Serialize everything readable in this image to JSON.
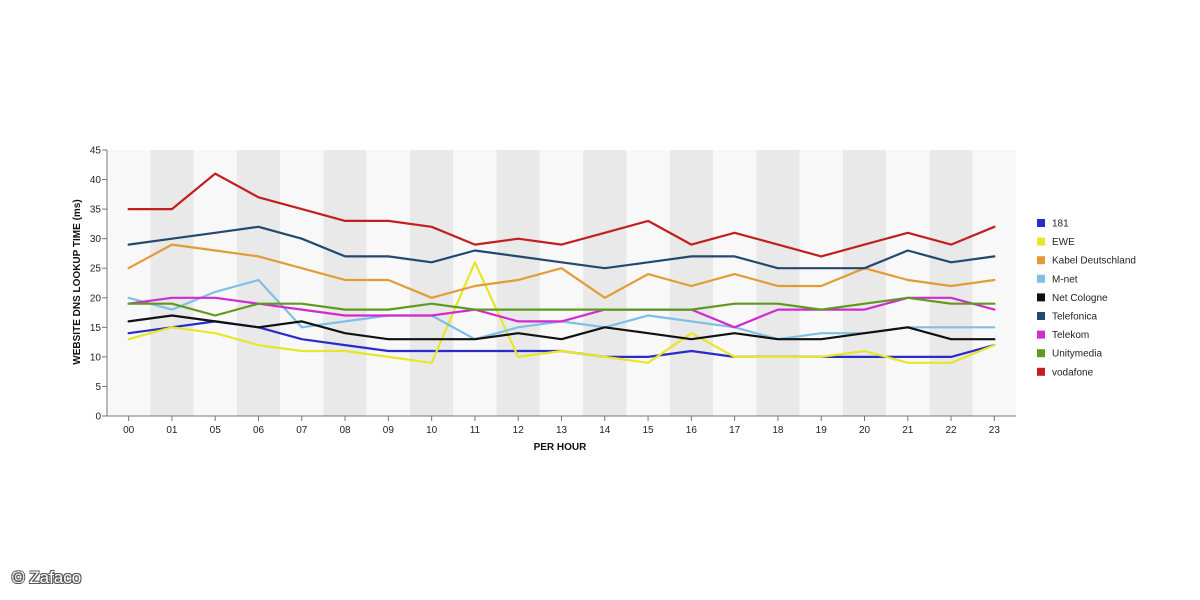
{
  "credit": "© Zafaco",
  "chart_data": {
    "type": "line",
    "title": "",
    "xlabel": "PER HOUR",
    "ylabel": "WEBSITE DNS LOOKUP TIME (ms)",
    "ylim": [
      0,
      45
    ],
    "yticks": [
      0,
      5,
      10,
      15,
      20,
      25,
      30,
      35,
      40,
      45
    ],
    "grid": "alternating vertical bands",
    "legend_position": "right",
    "categories": [
      "00",
      "01",
      "05",
      "06",
      "07",
      "08",
      "09",
      "10",
      "11",
      "12",
      "13",
      "14",
      "15",
      "16",
      "17",
      "18",
      "19",
      "20",
      "21",
      "22",
      "23"
    ],
    "series": [
      {
        "name": "181",
        "color": "#2b2bc8",
        "values": [
          14,
          15,
          16,
          15,
          13,
          12,
          11,
          11,
          11,
          11,
          11,
          10,
          10,
          11,
          10,
          10,
          10,
          10,
          10,
          10,
          12
        ]
      },
      {
        "name": "EWE",
        "color": "#e6e62a",
        "values": [
          13,
          15,
          14,
          12,
          11,
          11,
          10,
          9,
          26,
          10,
          11,
          10,
          9,
          14,
          10,
          10,
          10,
          11,
          9,
          9,
          12
        ]
      },
      {
        "name": "Kabel Deutschland",
        "color": "#e39b38",
        "values": [
          25,
          29,
          28,
          27,
          25,
          23,
          23,
          20,
          22,
          23,
          25,
          20,
          24,
          22,
          24,
          22,
          22,
          25,
          23,
          22,
          23
        ]
      },
      {
        "name": "M-net",
        "color": "#7fbfe6",
        "values": [
          20,
          18,
          21,
          23,
          15,
          16,
          17,
          17,
          13,
          15,
          16,
          15,
          17,
          16,
          15,
          13,
          14,
          14,
          15,
          15,
          15
        ]
      },
      {
        "name": "Net Cologne",
        "color": "#111111",
        "values": [
          16,
          17,
          16,
          15,
          16,
          14,
          13,
          13,
          13,
          14,
          13,
          15,
          14,
          13,
          14,
          13,
          13,
          14,
          15,
          13,
          13
        ]
      },
      {
        "name": "Telefonica",
        "color": "#24496e",
        "values": [
          29,
          30,
          31,
          32,
          30,
          27,
          27,
          26,
          28,
          27,
          26,
          25,
          26,
          27,
          27,
          25,
          25,
          25,
          28,
          26,
          27
        ]
      },
      {
        "name": "Telekom",
        "color": "#d12ad1",
        "values": [
          19,
          20,
          20,
          19,
          18,
          17,
          17,
          17,
          18,
          16,
          16,
          18,
          18,
          18,
          15,
          18,
          18,
          18,
          20,
          20,
          18
        ]
      },
      {
        "name": "Unitymedia",
        "color": "#5e9a1e",
        "values": [
          19,
          19,
          17,
          19,
          19,
          18,
          18,
          19,
          18,
          18,
          18,
          18,
          18,
          18,
          19,
          19,
          18,
          19,
          20,
          19,
          19
        ]
      },
      {
        "name": "vodafone",
        "color": "#c0201e",
        "values": [
          35,
          35,
          41,
          37,
          35,
          33,
          33,
          32,
          29,
          30,
          29,
          31,
          33,
          29,
          31,
          29,
          27,
          29,
          31,
          29,
          32
        ]
      }
    ]
  }
}
